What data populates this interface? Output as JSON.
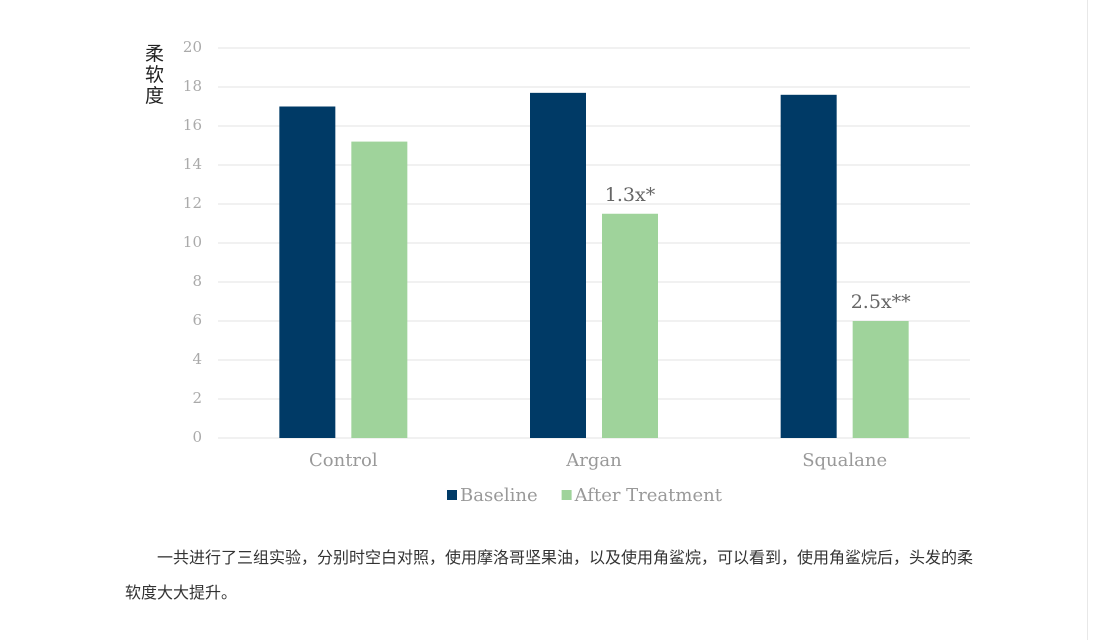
{
  "chart_data": {
    "type": "bar",
    "ylabel": "柔软度",
    "categories": [
      "Control",
      "Argan",
      "Squalane"
    ],
    "series": [
      {
        "name": "Baseline",
        "color": "#003a66",
        "values": [
          17,
          17.7,
          17.6
        ]
      },
      {
        "name": "After Treatment",
        "color": "#9fd39b",
        "values": [
          15.2,
          11.5,
          6
        ]
      }
    ],
    "annotations": [
      {
        "category": "Argan",
        "text": "1.3x*"
      },
      {
        "category": "Squalane",
        "text": "2.5x**"
      }
    ],
    "ylim": [
      0,
      20
    ],
    "yticks": [
      0,
      2,
      4,
      6,
      8,
      10,
      12,
      14,
      16,
      18,
      20
    ],
    "grid": true
  },
  "paragraph": "一共进行了三组实验，分别时空白对照，使用摩洛哥坚果油，以及使用角鲨烷，可以看到，使用角鲨烷后，头发的柔软度大大提升。"
}
